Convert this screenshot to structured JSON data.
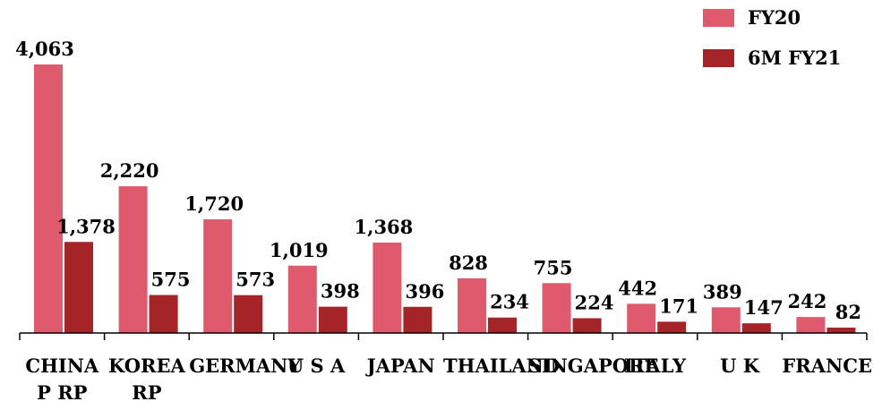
{
  "chart_data": {
    "type": "bar",
    "categories": [
      "CHINA P RP",
      "KOREA RP",
      "GERMANY",
      "U S A",
      "JAPAN",
      "THAILAND",
      "SINGAPORE",
      "ITALY",
      "U K",
      "FRANCE"
    ],
    "series": [
      {
        "name": "FY20",
        "color": "#e05a6e",
        "values": [
          4063,
          2220,
          1720,
          1019,
          1368,
          828,
          755,
          442,
          389,
          242
        ],
        "value_labels": [
          "4,063",
          "2,220",
          "1,720",
          "1,019",
          "1,368",
          "828",
          "755",
          "442",
          "389",
          "242"
        ]
      },
      {
        "name": "6M FY21",
        "color": "#a52428",
        "values": [
          1378,
          575,
          573,
          398,
          396,
          234,
          224,
          171,
          147,
          82
        ],
        "value_labels": [
          "1,378",
          "575",
          "573",
          "398",
          "396",
          "234",
          "224",
          "171",
          "147",
          "82"
        ]
      }
    ],
    "legend": "top-right"
  }
}
